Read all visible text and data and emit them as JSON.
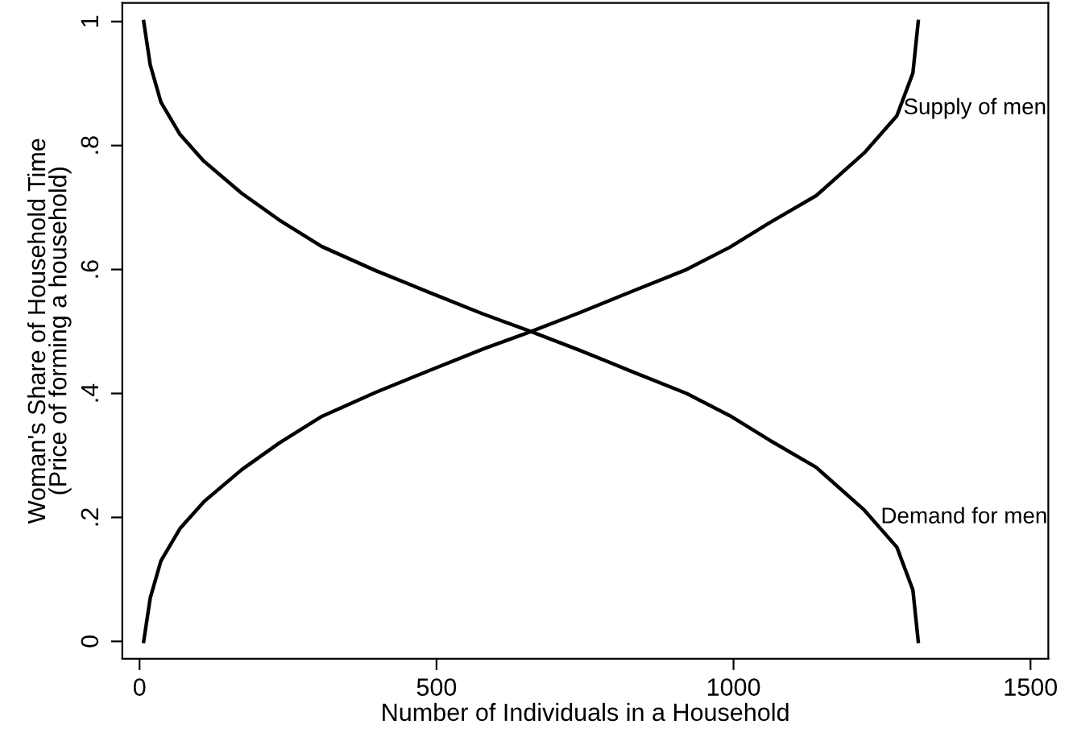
{
  "chart_data": {
    "type": "line",
    "xlabel": "Number of Individuals in a Household",
    "ylabel": "Woman's Share of Household Time\n(Price of forming a household)",
    "x": [
      7,
      18,
      36,
      68,
      108,
      172,
      235,
      307,
      398,
      488,
      579,
      659,
      740,
      830,
      921,
      994,
      1060,
      1139,
      1220,
      1275,
      1302,
      1311
    ],
    "series": [
      {
        "color": "#000000",
        "values": [
          0,
          0.07,
          0.13,
          0.182,
          0.225,
          0.277,
          0.32,
          0.363,
          0.402,
          0.437,
          0.472,
          0.5,
          0.53,
          0.565,
          0.6,
          0.636,
          0.675,
          0.719,
          0.788,
          0.848,
          0.917,
          1
        ]
      },
      {
        "color": "#000000",
        "values": [
          1,
          0.93,
          0.87,
          0.818,
          0.775,
          0.723,
          0.68,
          0.637,
          0.598,
          0.563,
          0.528,
          0.5,
          0.47,
          0.435,
          0.4,
          0.364,
          0.325,
          0.281,
          0.212,
          0.152,
          0.083,
          0
        ]
      }
    ],
    "annotations": [
      {
        "text": "Supply of men",
        "x": 1286,
        "y": 0.86
      },
      {
        "text": "Demand for men",
        "x": 1248,
        "y": 0.2
      }
    ],
    "xlim": [
      -29,
      1530
    ],
    "ylim": [
      -0.028,
      1.03
    ],
    "xticks": [
      0,
      500,
      1000,
      1500
    ],
    "yticks": [
      0,
      {
        "value": 0.2,
        "label": ".2"
      },
      {
        "value": 0.4,
        "label": ".4"
      },
      {
        "value": 0.6,
        "label": ".6"
      },
      {
        "value": 0.8,
        "label": ".8"
      },
      1
    ],
    "grid": false,
    "legend": false,
    "marker": "none",
    "line_style": "solid"
  }
}
